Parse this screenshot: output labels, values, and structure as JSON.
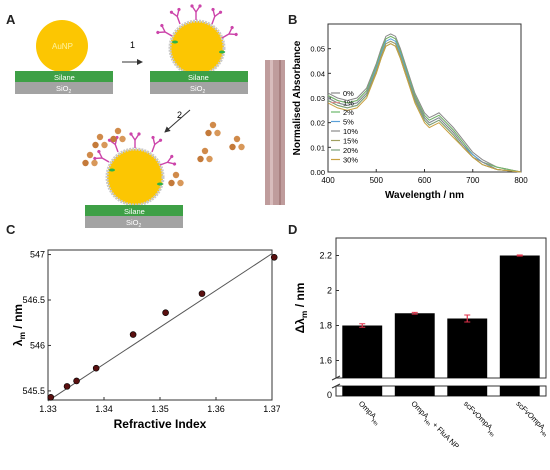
{
  "panel_labels": [
    "A",
    "B",
    "C",
    "D"
  ],
  "schematic": {
    "aunp_label": "AuNP",
    "silane_label": "Silane",
    "sio2_label": "SiO",
    "sio2_sub": "2",
    "step1": "1",
    "step2": "2",
    "colors": {
      "gold": "#fcc602",
      "silane": "#3ea046",
      "substrate": "#a3a3a3",
      "antibody": "#cc44aa",
      "protein": "#d08a4a",
      "linker": "#2bb34a"
    }
  },
  "chart_data": [
    {
      "panel": "B",
      "type": "line",
      "xlabel": "Wavelength / nm",
      "ylabel": "Normalised Absorbance",
      "xlim": [
        400,
        800
      ],
      "ylim": [
        0.0,
        0.06
      ],
      "xticks": [
        400,
        500,
        600,
        700,
        800
      ],
      "yticks": [
        0.0,
        0.01,
        0.02,
        0.03,
        0.04,
        0.05
      ],
      "legend_position": "left",
      "x": [
        400,
        420,
        440,
        460,
        480,
        500,
        510,
        520,
        530,
        540,
        550,
        560,
        580,
        600,
        610,
        620,
        630,
        640,
        660,
        680,
        700,
        720,
        750,
        800
      ],
      "series": [
        {
          "name": "0%",
          "color": "#888888",
          "values": [
            0.032,
            0.03,
            0.029,
            0.03,
            0.034,
            0.044,
            0.05,
            0.055,
            0.056,
            0.055,
            0.05,
            0.044,
            0.032,
            0.024,
            0.022,
            0.023,
            0.024,
            0.022,
            0.018,
            0.013,
            0.008,
            0.005,
            0.002,
            0.0
          ]
        },
        {
          "name": "1%",
          "color": "#d98c8c",
          "values": [
            0.031,
            0.029,
            0.028,
            0.029,
            0.033,
            0.043,
            0.049,
            0.054,
            0.055,
            0.054,
            0.049,
            0.043,
            0.031,
            0.023,
            0.021,
            0.022,
            0.023,
            0.021,
            0.017,
            0.012,
            0.007,
            0.004,
            0.002,
            0.0
          ]
        },
        {
          "name": "2%",
          "color": "#6ab86a",
          "values": [
            0.031,
            0.029,
            0.028,
            0.029,
            0.033,
            0.043,
            0.049,
            0.054,
            0.055,
            0.054,
            0.049,
            0.043,
            0.031,
            0.023,
            0.021,
            0.022,
            0.023,
            0.021,
            0.017,
            0.012,
            0.007,
            0.004,
            0.002,
            0.0
          ]
        },
        {
          "name": "5%",
          "color": "#5aa0d8",
          "values": [
            0.03,
            0.028,
            0.027,
            0.028,
            0.032,
            0.042,
            0.048,
            0.053,
            0.054,
            0.053,
            0.048,
            0.042,
            0.03,
            0.022,
            0.02,
            0.021,
            0.022,
            0.02,
            0.016,
            0.011,
            0.007,
            0.004,
            0.001,
            0.0
          ]
        },
        {
          "name": "10%",
          "color": "#8a8a8a",
          "values": [
            0.03,
            0.028,
            0.027,
            0.028,
            0.032,
            0.041,
            0.047,
            0.052,
            0.053,
            0.052,
            0.047,
            0.041,
            0.03,
            0.022,
            0.02,
            0.021,
            0.022,
            0.02,
            0.016,
            0.011,
            0.006,
            0.004,
            0.001,
            0.0
          ]
        },
        {
          "name": "15%",
          "color": "#a0a060",
          "values": [
            0.029,
            0.027,
            0.026,
            0.027,
            0.031,
            0.041,
            0.047,
            0.052,
            0.053,
            0.052,
            0.047,
            0.041,
            0.029,
            0.021,
            0.019,
            0.02,
            0.021,
            0.019,
            0.015,
            0.01,
            0.006,
            0.003,
            0.001,
            0.0
          ]
        },
        {
          "name": "20%",
          "color": "#7aa07a",
          "values": [
            0.029,
            0.027,
            0.026,
            0.027,
            0.031,
            0.04,
            0.046,
            0.051,
            0.052,
            0.051,
            0.046,
            0.04,
            0.029,
            0.021,
            0.019,
            0.02,
            0.021,
            0.019,
            0.015,
            0.01,
            0.006,
            0.003,
            0.001,
            0.0
          ]
        },
        {
          "name": "30%",
          "color": "#c8a040",
          "values": [
            0.028,
            0.026,
            0.025,
            0.026,
            0.03,
            0.04,
            0.046,
            0.051,
            0.052,
            0.051,
            0.046,
            0.04,
            0.028,
            0.02,
            0.018,
            0.019,
            0.02,
            0.018,
            0.014,
            0.01,
            0.006,
            0.003,
            0.001,
            0.0
          ]
        }
      ]
    },
    {
      "panel": "C",
      "type": "scatter",
      "xlabel": "Refractive Index",
      "ylabel_main": "λ",
      "ylabel_sub": "m",
      "ylabel_tail": " / nm",
      "xlim": [
        1.33,
        1.37
      ],
      "ylim": [
        545.4,
        547.05
      ],
      "xticks": [
        1.33,
        1.34,
        1.35,
        1.36,
        1.37
      ],
      "ytick_labels": [
        "545.5",
        "546",
        "546.5",
        "547"
      ],
      "yticks": [
        545.5,
        546.0,
        546.5,
        547.0
      ],
      "points": [
        {
          "x": 1.3305,
          "y": 545.43
        },
        {
          "x": 1.3334,
          "y": 545.55
        },
        {
          "x": 1.3351,
          "y": 545.61
        },
        {
          "x": 1.3386,
          "y": 545.75
        },
        {
          "x": 1.3452,
          "y": 546.12
        },
        {
          "x": 1.351,
          "y": 546.36
        },
        {
          "x": 1.3575,
          "y": 546.57
        },
        {
          "x": 1.3704,
          "y": 546.97
        }
      ],
      "fit": {
        "x": [
          1.33,
          1.37
        ],
        "y": [
          545.39,
          547.01
        ]
      },
      "marker_color": "#5a1010"
    },
    {
      "panel": "D",
      "type": "bar",
      "ylabel_main": "Δλ",
      "ylabel_sub": "m",
      "ylabel_tail": " / nm",
      "ylim_upper": [
        1.5,
        2.3
      ],
      "yticks": [
        1.6,
        1.8,
        2.0,
        2.2
      ],
      "ytick_labels": [
        "1.6",
        "1.8",
        "2",
        "2.2"
      ],
      "ylim_lower": [
        0,
        0.02
      ],
      "lower_ytick_labels": [
        "0"
      ],
      "axis_break": true,
      "categories": [
        "OmpA$_{Hn}$",
        "OmpA$_{Hn}$ + FluA NP",
        "scFvOmpA$_{Hn}$",
        "scFvOmpA$_{Hn}$ + FluA NP"
      ],
      "category_parts": [
        {
          "main": "OmpA",
          "sub": "Hn",
          "tail": ""
        },
        {
          "main": "OmpA",
          "sub": "Hn",
          "tail": " + FluA NP"
        },
        {
          "main": "scFvOmpA",
          "sub": "Hn",
          "tail": ""
        },
        {
          "main": "scFvOmpA",
          "sub": "Hn",
          "tail": " + FluA NP"
        }
      ],
      "values": [
        1.8,
        1.87,
        1.84,
        2.2
      ],
      "errors": [
        0.01,
        0.005,
        0.02,
        0.003
      ],
      "bar_color": "#000000",
      "error_color": "#e0314a"
    }
  ]
}
